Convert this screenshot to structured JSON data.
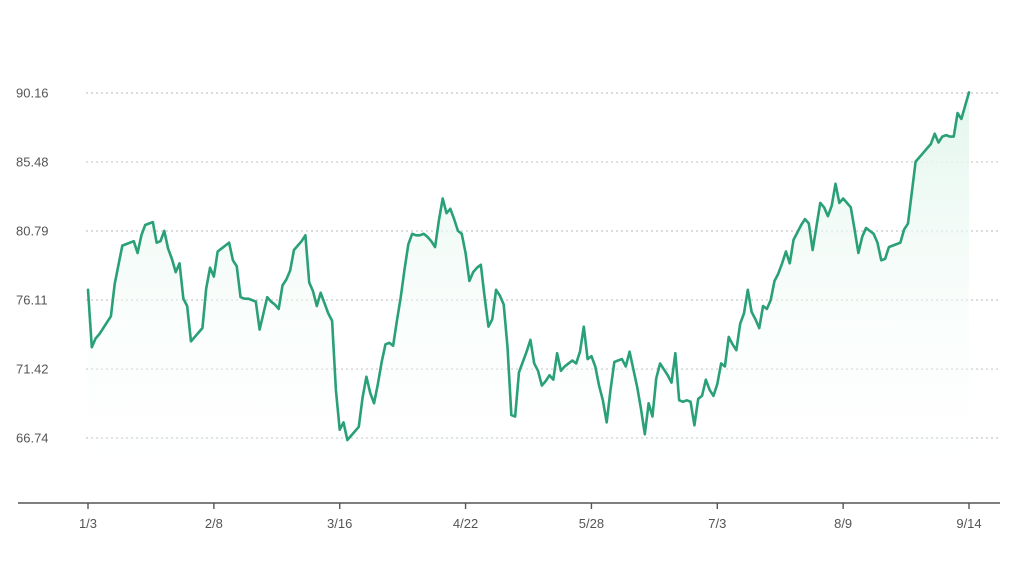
{
  "chart_data": {
    "type": "area",
    "title": "",
    "xlabel": "",
    "ylabel": "",
    "y_ticks": [
      "66.74",
      "71.42",
      "76.11",
      "80.79",
      "85.48",
      "90.16"
    ],
    "x_ticks": [
      "1/3",
      "2/8",
      "3/16",
      "4/22",
      "5/28",
      "7/3",
      "8/9",
      "9/14"
    ],
    "ylim": [
      63.0,
      92.0
    ],
    "grid": "horizontal-dotted",
    "legend": "none",
    "series": [
      {
        "values": [
          76.8,
          72.9,
          73.5,
          73.8,
          74.2,
          74.6,
          75.0,
          77.2,
          78.5,
          79.8,
          79.9,
          80.0,
          80.1,
          79.3,
          80.5,
          81.2,
          81.3,
          81.4,
          80.0,
          80.1,
          80.8,
          79.6,
          78.9,
          78.0,
          78.6,
          76.2,
          75.7,
          73.3,
          73.6,
          73.9,
          74.2,
          76.9,
          78.3,
          77.7,
          79.4,
          79.6,
          79.8,
          80.0,
          78.8,
          78.4,
          76.3,
          76.2,
          76.2,
          76.1,
          76.0,
          74.1,
          75.2,
          76.3,
          76.0,
          75.8,
          75.5,
          77.1,
          77.5,
          78.1,
          79.5,
          79.8,
          80.1,
          80.5,
          77.3,
          76.7,
          75.7,
          76.6,
          75.9,
          75.2,
          74.7,
          70.0,
          67.3,
          67.8,
          66.6,
          66.9,
          67.2,
          67.5,
          69.5,
          70.9,
          69.8,
          69.1,
          70.4,
          71.9,
          73.1,
          73.2,
          73.0,
          74.7,
          76.3,
          78.2,
          79.9,
          80.6,
          80.5,
          80.5,
          80.6,
          80.4,
          80.1,
          79.7,
          81.5,
          83.0,
          82.0,
          82.3,
          81.6,
          80.8,
          80.6,
          79.3,
          77.4,
          78.0,
          78.3,
          78.5,
          76.3,
          74.3,
          74.8,
          76.8,
          76.4,
          75.8,
          72.9,
          68.3,
          68.2,
          71.2,
          71.9,
          72.6,
          73.4,
          71.8,
          71.3,
          70.3,
          70.6,
          71.0,
          70.7,
          72.5,
          71.3,
          71.6,
          71.8,
          72.0,
          71.8,
          72.6,
          74.3,
          72.1,
          72.3,
          71.6,
          70.3,
          69.3,
          67.8,
          70.0,
          71.9,
          72.0,
          72.1,
          71.6,
          72.6,
          71.4,
          70.2,
          68.7,
          67.0,
          69.1,
          68.2,
          70.8,
          71.8,
          71.4,
          71.0,
          70.5,
          72.5,
          69.3,
          69.2,
          69.3,
          69.2,
          67.6,
          69.4,
          69.6,
          70.7,
          70.0,
          69.6,
          70.4,
          71.8,
          71.6,
          73.6,
          73.1,
          72.7,
          74.5,
          75.2,
          76.8,
          75.3,
          74.8,
          74.2,
          75.7,
          75.5,
          76.1,
          77.4,
          77.9,
          78.6,
          79.4,
          78.6,
          80.2,
          80.7,
          81.2,
          81.6,
          81.3,
          79.5,
          81.1,
          82.7,
          82.4,
          81.8,
          82.5,
          84.0,
          82.7,
          83.0,
          82.7,
          82.4,
          80.9,
          79.3,
          80.4,
          81.0,
          80.8,
          80.6,
          80.0,
          78.8,
          78.9,
          79.7,
          79.8,
          79.9,
          80.0,
          80.9,
          81.3,
          83.4,
          85.5,
          85.8,
          86.1,
          86.4,
          86.7,
          87.4,
          86.8,
          87.2,
          87.3,
          87.2,
          87.2,
          88.8,
          88.4,
          89.3,
          90.2
        ],
        "color": "#2aa077",
        "fill": "#e8f7f0"
      }
    ]
  }
}
